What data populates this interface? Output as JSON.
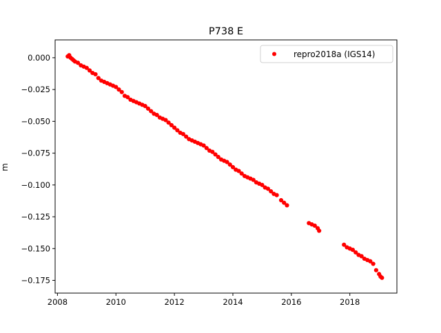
{
  "chart_data": {
    "type": "scatter",
    "title": "P738 E",
    "xlabel": "",
    "ylabel": "m",
    "xlim": [
      2007.92,
      2019.61
    ],
    "ylim": [
      -0.185,
      0.014
    ],
    "xticks": [
      2008,
      2010,
      2012,
      2014,
      2016,
      2018
    ],
    "xtick_labels": [
      "2008",
      "2010",
      "2012",
      "2014",
      "2016",
      "2018"
    ],
    "yticks": [
      0.0,
      -0.025,
      -0.05,
      -0.075,
      -0.1,
      -0.125,
      -0.15,
      -0.175
    ],
    "ytick_labels": [
      "0.000",
      "−0.025",
      "−0.050",
      "−0.075",
      "−0.100",
      "−0.125",
      "−0.150",
      "−0.175"
    ],
    "grid": false,
    "legend_position": "top-right",
    "series": [
      {
        "name": "repro2018a (IGS14)",
        "color": "#ff0000",
        "marker": "circle",
        "points": [
          [
            2008.35,
            0.001
          ],
          [
            2008.4,
            0.002
          ],
          [
            2008.45,
            0.0
          ],
          [
            2008.5,
            -0.001
          ],
          [
            2008.55,
            -0.002
          ],
          [
            2008.6,
            -0.003
          ],
          [
            2008.7,
            -0.004
          ],
          [
            2008.8,
            -0.006
          ],
          [
            2008.9,
            -0.007
          ],
          [
            2009.0,
            -0.008
          ],
          [
            2009.1,
            -0.01
          ],
          [
            2009.2,
            -0.012
          ],
          [
            2009.3,
            -0.013
          ],
          [
            2009.4,
            -0.016
          ],
          [
            2009.5,
            -0.018
          ],
          [
            2009.6,
            -0.019
          ],
          [
            2009.7,
            -0.02
          ],
          [
            2009.8,
            -0.021
          ],
          [
            2009.9,
            -0.022
          ],
          [
            2010.0,
            -0.023
          ],
          [
            2010.1,
            -0.025
          ],
          [
            2010.2,
            -0.027
          ],
          [
            2010.3,
            -0.03
          ],
          [
            2010.4,
            -0.031
          ],
          [
            2010.5,
            -0.033
          ],
          [
            2010.6,
            -0.034
          ],
          [
            2010.7,
            -0.035
          ],
          [
            2010.8,
            -0.036
          ],
          [
            2010.9,
            -0.037
          ],
          [
            2011.0,
            -0.038
          ],
          [
            2011.1,
            -0.04
          ],
          [
            2011.2,
            -0.042
          ],
          [
            2011.3,
            -0.044
          ],
          [
            2011.4,
            -0.045
          ],
          [
            2011.5,
            -0.047
          ],
          [
            2011.6,
            -0.048
          ],
          [
            2011.7,
            -0.049
          ],
          [
            2011.8,
            -0.051
          ],
          [
            2011.9,
            -0.053
          ],
          [
            2012.0,
            -0.055
          ],
          [
            2012.1,
            -0.057
          ],
          [
            2012.2,
            -0.059
          ],
          [
            2012.3,
            -0.06
          ],
          [
            2012.4,
            -0.062
          ],
          [
            2012.5,
            -0.064
          ],
          [
            2012.6,
            -0.065
          ],
          [
            2012.7,
            -0.066
          ],
          [
            2012.8,
            -0.067
          ],
          [
            2012.9,
            -0.068
          ],
          [
            2013.0,
            -0.069
          ],
          [
            2013.1,
            -0.071
          ],
          [
            2013.2,
            -0.073
          ],
          [
            2013.3,
            -0.074
          ],
          [
            2013.4,
            -0.076
          ],
          [
            2013.5,
            -0.078
          ],
          [
            2013.6,
            -0.08
          ],
          [
            2013.7,
            -0.081
          ],
          [
            2013.8,
            -0.082
          ],
          [
            2013.9,
            -0.084
          ],
          [
            2014.0,
            -0.086
          ],
          [
            2014.1,
            -0.088
          ],
          [
            2014.2,
            -0.089
          ],
          [
            2014.3,
            -0.091
          ],
          [
            2014.4,
            -0.093
          ],
          [
            2014.5,
            -0.094
          ],
          [
            2014.6,
            -0.095
          ],
          [
            2014.7,
            -0.096
          ],
          [
            2014.8,
            -0.098
          ],
          [
            2014.9,
            -0.099
          ],
          [
            2015.0,
            -0.1
          ],
          [
            2015.1,
            -0.102
          ],
          [
            2015.2,
            -0.103
          ],
          [
            2015.3,
            -0.105
          ],
          [
            2015.4,
            -0.107
          ],
          [
            2015.5,
            -0.108
          ],
          [
            2015.65,
            -0.112
          ],
          [
            2015.75,
            -0.114
          ],
          [
            2015.85,
            -0.116
          ],
          [
            2016.6,
            -0.13
          ],
          [
            2016.7,
            -0.131
          ],
          [
            2016.8,
            -0.132
          ],
          [
            2016.9,
            -0.134
          ],
          [
            2016.95,
            -0.136
          ],
          [
            2017.8,
            -0.147
          ],
          [
            2017.9,
            -0.149
          ],
          [
            2018.0,
            -0.15
          ],
          [
            2018.1,
            -0.151
          ],
          [
            2018.2,
            -0.153
          ],
          [
            2018.3,
            -0.155
          ],
          [
            2018.4,
            -0.156
          ],
          [
            2018.5,
            -0.158
          ],
          [
            2018.6,
            -0.159
          ],
          [
            2018.7,
            -0.16
          ],
          [
            2018.8,
            -0.162
          ],
          [
            2018.9,
            -0.167
          ],
          [
            2019.0,
            -0.17
          ],
          [
            2019.05,
            -0.172
          ],
          [
            2019.1,
            -0.173
          ]
        ]
      }
    ]
  }
}
